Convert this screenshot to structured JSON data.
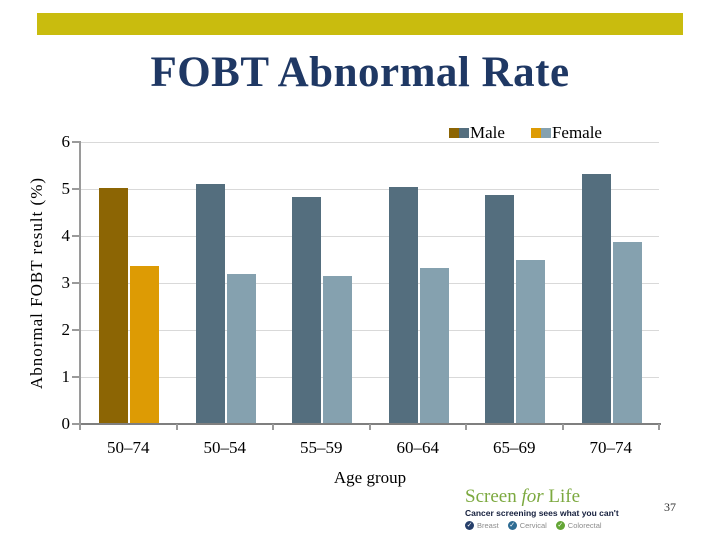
{
  "slide": {
    "title": "FOBT Abnormal Rate",
    "page_number": "37"
  },
  "colors": {
    "banner": "#c9bc0e",
    "title_text": "#1f3864",
    "male_all_ages": "#8c6504",
    "female_all_ages": "#dd9b04",
    "male": "#546e7e",
    "female": "#85a1af",
    "gridline": "#d9d9d9",
    "axis": "#9a9a9a",
    "logo_green": "#7ca93f"
  },
  "chart_data": {
    "type": "bar",
    "title": "",
    "xlabel": "Age group",
    "ylabel": "Abnormal FOBT result (%)",
    "ylim": [
      0,
      6
    ],
    "yticks": [
      0,
      1,
      2,
      3,
      4,
      5,
      6
    ],
    "grid": true,
    "legend_position": "top-right",
    "categories": [
      "50–74",
      "50–54",
      "55–59",
      "60–64",
      "65–69",
      "70–74"
    ],
    "series": [
      {
        "name": "Male",
        "values": [
          5.03,
          5.11,
          4.83,
          5.04,
          4.87,
          5.32
        ],
        "colors": [
          "#8c6504",
          "#546e7e",
          "#546e7e",
          "#546e7e",
          "#546e7e",
          "#546e7e"
        ]
      },
      {
        "name": "Female",
        "values": [
          3.36,
          3.2,
          3.15,
          3.31,
          3.49,
          3.87
        ],
        "colors": [
          "#dd9b04",
          "#85a1af",
          "#85a1af",
          "#85a1af",
          "#85a1af",
          "#85a1af"
        ]
      }
    ],
    "legend": [
      {
        "label": "Male",
        "swatches": [
          "#8c6504",
          "#546e7e"
        ]
      },
      {
        "label": "Female",
        "swatches": [
          "#dd9b04",
          "#85a1af"
        ]
      }
    ]
  },
  "logo": {
    "brand_prefix": "Screen ",
    "brand_italic": "for",
    "brand_suffix": " Life",
    "tagline": "Cancer screening sees what you can't",
    "programs": [
      {
        "label": "Breast",
        "color": "#27406b"
      },
      {
        "label": "Cervical",
        "color": "#2f6c93"
      },
      {
        "label": "Colorectal",
        "color": "#63a535"
      }
    ],
    "check_glyph": "✓"
  }
}
